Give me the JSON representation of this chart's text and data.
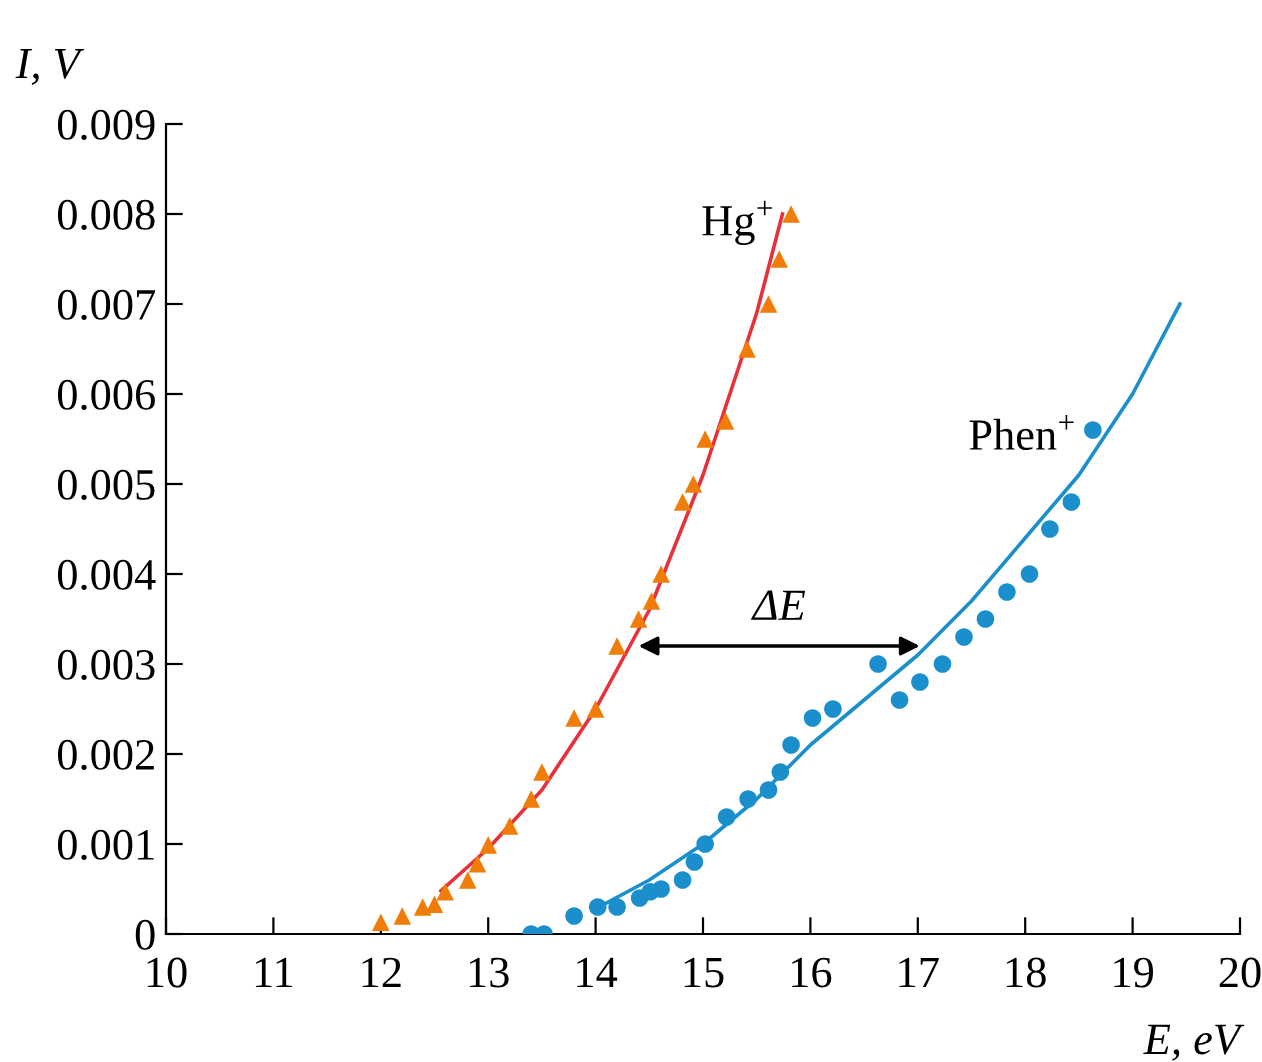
{
  "chart_data": {
    "type": "scatter",
    "xlabel": "E, eV",
    "ylabel": "I, V",
    "xlim": [
      10,
      20
    ],
    "xticks": [
      10,
      11,
      12,
      13,
      14,
      15,
      16,
      17,
      18,
      19,
      20
    ],
    "ylim": [
      0,
      0.009
    ],
    "yticks": [
      0,
      0.001,
      0.002,
      0.003,
      0.004,
      0.005,
      0.006,
      0.007,
      0.008,
      0.009
    ],
    "grid": false,
    "legend": false,
    "series": [
      {
        "name": "Hg$^{+}$",
        "type": "scatter",
        "marker": "triangle",
        "color": "#f07d0a",
        "x": [
          12.0,
          12.2,
          12.39,
          12.5,
          12.6,
          12.81,
          12.9,
          13.0,
          13.2,
          13.4,
          13.5,
          13.8,
          14.0,
          14.2,
          14.4,
          14.52,
          14.61,
          14.81,
          14.91,
          15.02,
          15.21,
          15.41,
          15.61,
          15.71,
          15.82
        ],
        "values": [
          0.00013,
          0.0002,
          0.0003,
          0.00033,
          0.00047,
          0.0006,
          0.00078,
          0.00099,
          0.0012,
          0.0015,
          0.0018,
          0.0024,
          0.0025,
          0.0032,
          0.0035,
          0.0037,
          0.004,
          0.0048,
          0.005,
          0.0055,
          0.0057,
          0.0065,
          0.007,
          0.0075,
          0.008
        ]
      },
      {
        "type": "line",
        "marker": "none",
        "color": "#e8303a",
        "x": [
          12.56,
          13.0,
          13.5,
          14.0,
          14.5,
          15.0,
          15.5,
          15.74
        ],
        "values": [
          0.00048,
          0.00095,
          0.0016,
          0.0025,
          0.0036,
          0.0051,
          0.0069,
          0.008
        ]
      },
      {
        "name": "Phen$^{+}$",
        "type": "scatter",
        "marker": "circle",
        "color": "#1b8fcb",
        "x": [
          13.4,
          13.52,
          13.8,
          14.02,
          14.2,
          14.41,
          14.51,
          14.61,
          14.81,
          14.92,
          15.02,
          15.22,
          15.42,
          15.61,
          15.72,
          15.82,
          16.02,
          16.21,
          16.63,
          16.83,
          17.02,
          17.23,
          17.43,
          17.63,
          17.83,
          18.04,
          18.23,
          18.43,
          18.63
        ],
        "values": [
          0.0,
          0.0,
          0.0002,
          0.0003,
          0.0003,
          0.0004,
          0.00047,
          0.0005,
          0.0006,
          0.0008,
          0.001,
          0.0013,
          0.0015,
          0.0016,
          0.0018,
          0.0021,
          0.0024,
          0.0025,
          0.003,
          0.0026,
          0.0028,
          0.003,
          0.0033,
          0.0035,
          0.0038,
          0.004,
          0.0045,
          0.0048,
          0.0056
        ]
      },
      {
        "type": "line",
        "marker": "none",
        "color": "#1b8fcb",
        "x": [
          14.0,
          14.5,
          15.0,
          15.5,
          16.0,
          16.5,
          17.0,
          17.5,
          18.0,
          18.5,
          19.0,
          19.44
        ],
        "values": [
          0.00028,
          0.0006,
          0.001,
          0.0015,
          0.0021,
          0.0026,
          0.0031,
          0.0037,
          0.0044,
          0.0051,
          0.006,
          0.007
        ]
      }
    ],
    "annotations": [
      {
        "text": "ΔE",
        "x": 17.1,
        "y": 0.0032
      }
    ]
  }
}
